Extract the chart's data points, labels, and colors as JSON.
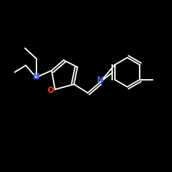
{
  "bg_color": "#000000",
  "bond_color": "#ffffff",
  "N_color": "#4466ff",
  "O_color": "#ff3300",
  "font_size": 8.5,
  "lw": 1.4,
  "figsize": [
    2.5,
    2.5
  ],
  "dpi": 100,
  "xlim": [
    0,
    10
  ],
  "ylim": [
    0,
    10
  ]
}
